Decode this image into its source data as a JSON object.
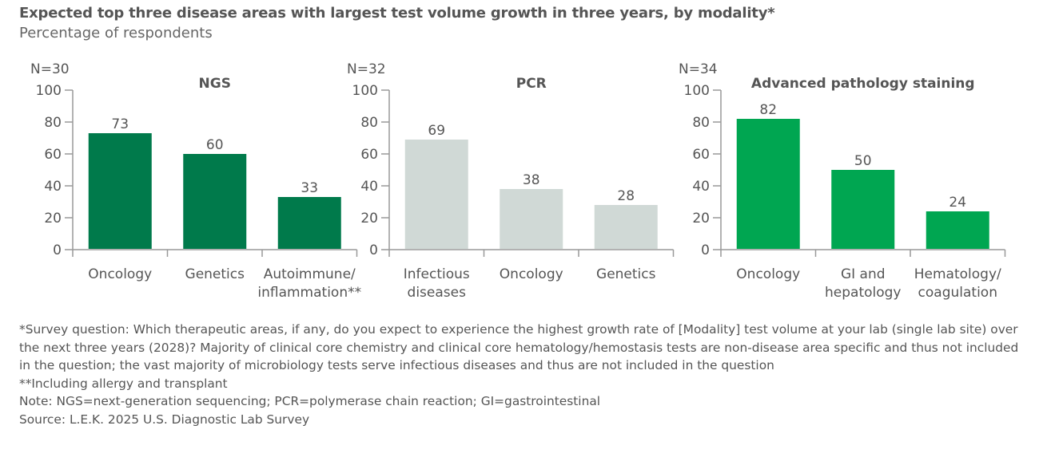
{
  "title": "Expected top three disease areas with largest test volume growth in three years, by modality*",
  "subtitle": "Percentage of respondents",
  "chart_data": [
    {
      "type": "bar",
      "title": "NGS",
      "n_label": "N=30",
      "categories": [
        [
          "Oncology"
        ],
        [
          "Genetics"
        ],
        [
          "Autoimmune/",
          "inflammation**"
        ]
      ],
      "values": [
        73,
        60,
        33
      ],
      "ylim": [
        0,
        100
      ],
      "yticks": [
        0,
        20,
        40,
        60,
        80,
        100
      ],
      "color": "#007a4b",
      "grid": false
    },
    {
      "type": "bar",
      "title": "PCR",
      "n_label": "N=32",
      "categories": [
        [
          "Infectious",
          "diseases"
        ],
        [
          "Oncology"
        ],
        [
          "Genetics"
        ]
      ],
      "values": [
        69,
        38,
        28
      ],
      "ylim": [
        0,
        100
      ],
      "yticks": [
        0,
        20,
        40,
        60,
        80,
        100
      ],
      "color": "#d0d9d6",
      "grid": false
    },
    {
      "type": "bar",
      "title": "Advanced pathology staining",
      "n_label": "N=34",
      "categories": [
        [
          "Oncology"
        ],
        [
          "GI and",
          "hepatology"
        ],
        [
          "Hematology/",
          "coagulation"
        ]
      ],
      "values": [
        82,
        50,
        24
      ],
      "ylim": [
        0,
        100
      ],
      "yticks": [
        0,
        20,
        40,
        60,
        80,
        100
      ],
      "color": "#00a651",
      "grid": false
    }
  ],
  "footnotes": [
    "*Survey question: Which therapeutic areas, if any, do you expect to experience the highest growth rate of [Modality] test volume at your lab (single lab site) over the next three years (2028)? Majority of clinical core chemistry and clinical core hematology/hemostasis tests are non-disease area specific and thus not included in the question; the vast majority of microbiology tests serve infectious diseases and thus are not included in the question",
    "**Including allergy and transplant",
    "Note: NGS=next-generation sequencing; PCR=polymerase chain reaction; GI=gastrointestinal",
    "Source: L.E.K. 2025 U.S. Diagnostic Lab Survey"
  ]
}
